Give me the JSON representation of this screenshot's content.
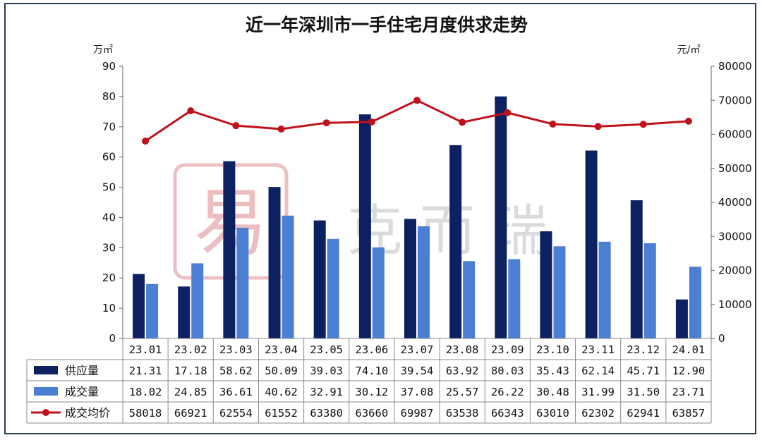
{
  "chart_data": {
    "type": "bar",
    "title": "近一年深圳市一手住宅月度供求走势",
    "left_unit": "万㎡",
    "right_unit": "元/㎡",
    "categories": [
      "23.01",
      "23.02",
      "23.03",
      "23.04",
      "23.05",
      "23.06",
      "23.07",
      "23.08",
      "23.09",
      "23.10",
      "23.11",
      "23.12",
      "24.01"
    ],
    "ylim_left": [
      0,
      90
    ],
    "yticks_left": [
      "0",
      "10",
      "20",
      "30",
      "40",
      "50",
      "60",
      "70",
      "80",
      "90"
    ],
    "ylim_right": [
      0,
      80000
    ],
    "yticks_right": [
      "0",
      "10000",
      "20000",
      "30000",
      "40000",
      "50000",
      "60000",
      "70000",
      "80000"
    ],
    "series": [
      {
        "name": "供应量",
        "type": "bar",
        "axis": "left",
        "color": "#0d2160",
        "values": [
          21.31,
          17.18,
          58.62,
          50.09,
          39.03,
          74.1,
          39.54,
          63.92,
          80.03,
          35.43,
          62.14,
          45.71,
          12.9
        ],
        "labels": [
          "21.31",
          "17.18",
          "58.62",
          "50.09",
          "39.03",
          "74.10",
          "39.54",
          "63.92",
          "80.03",
          "35.43",
          "62.14",
          "45.71",
          "12.90"
        ]
      },
      {
        "name": "成交量",
        "type": "bar",
        "axis": "left",
        "color": "#4a7fd4",
        "values": [
          18.02,
          24.85,
          36.61,
          40.62,
          32.91,
          30.12,
          37.08,
          25.57,
          26.22,
          30.48,
          31.99,
          31.5,
          23.71
        ],
        "labels": [
          "18.02",
          "24.85",
          "36.61",
          "40.62",
          "32.91",
          "30.12",
          "37.08",
          "25.57",
          "26.22",
          "30.48",
          "31.99",
          "31.50",
          "23.71"
        ]
      },
      {
        "name": "成交均价",
        "type": "line",
        "axis": "right",
        "color": "#c0111a",
        "values": [
          58018,
          66921,
          62554,
          61552,
          63380,
          63660,
          69987,
          63538,
          66343,
          63010,
          62302,
          62941,
          63857
        ],
        "labels": [
          "58018",
          "66921",
          "62554",
          "61552",
          "63380",
          "63660",
          "69987",
          "63538",
          "66343",
          "63010",
          "62302",
          "62941",
          "63857"
        ]
      }
    ],
    "grid": false,
    "legend": "data-table-bottom"
  },
  "watermark": {
    "seal_glyph": "易",
    "text": "克 而 瑞"
  }
}
